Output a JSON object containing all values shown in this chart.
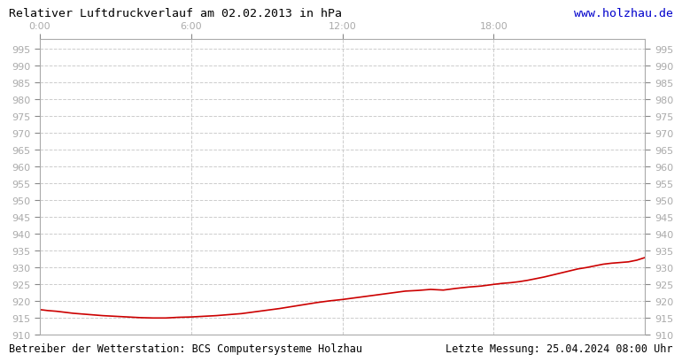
{
  "title": "Relativer Luftdruckverlauf am 02.02.2013 in hPa",
  "url_text": "www.holzhau.de",
  "footer_left": "Betreiber der Wetterstation: BCS Computersysteme Holzhau",
  "footer_right": "Letzte Messung: 25.04.2024 08:00 Uhr",
  "x_tick_labels": [
    "0:00",
    "6:00",
    "12:00",
    "18:00"
  ],
  "x_tick_positions": [
    0,
    360,
    720,
    1080
  ],
  "x_max": 1440,
  "ylim": [
    910,
    998
  ],
  "yticks": [
    910,
    915,
    920,
    925,
    930,
    935,
    940,
    945,
    950,
    955,
    960,
    965,
    970,
    975,
    980,
    985,
    990,
    995
  ],
  "background_color": "#ffffff",
  "plot_bg_color": "#ffffff",
  "grid_color": "#cccccc",
  "line_color": "#cc0000",
  "title_color": "#000000",
  "url_color": "#0000cc",
  "tick_label_color": "#aaaaaa",
  "footer_color": "#000000",
  "pressure_data_x": [
    0,
    20,
    40,
    60,
    80,
    100,
    120,
    150,
    180,
    210,
    240,
    270,
    300,
    330,
    360,
    390,
    420,
    450,
    480,
    510,
    540,
    570,
    600,
    630,
    660,
    690,
    720,
    750,
    780,
    810,
    840,
    870,
    900,
    930,
    960,
    990,
    1020,
    1050,
    1080,
    1100,
    1120,
    1140,
    1160,
    1180,
    1200,
    1220,
    1240,
    1260,
    1280,
    1300,
    1320,
    1340,
    1360,
    1380,
    1400,
    1420,
    1440
  ],
  "pressure_data_y": [
    917.5,
    917.2,
    917.0,
    916.7,
    916.4,
    916.2,
    916.0,
    915.7,
    915.5,
    915.3,
    915.1,
    915.0,
    915.0,
    915.2,
    915.3,
    915.5,
    915.7,
    916.0,
    916.3,
    916.8,
    917.3,
    917.8,
    918.4,
    919.0,
    919.6,
    920.1,
    920.5,
    921.0,
    921.5,
    922.0,
    922.5,
    923.0,
    923.2,
    923.5,
    923.3,
    923.8,
    924.2,
    924.5,
    925.0,
    925.3,
    925.5,
    925.8,
    926.2,
    926.7,
    927.2,
    927.8,
    928.4,
    929.0,
    929.6,
    930.0,
    930.5,
    931.0,
    931.3,
    931.5,
    931.7,
    932.2,
    933.0
  ]
}
